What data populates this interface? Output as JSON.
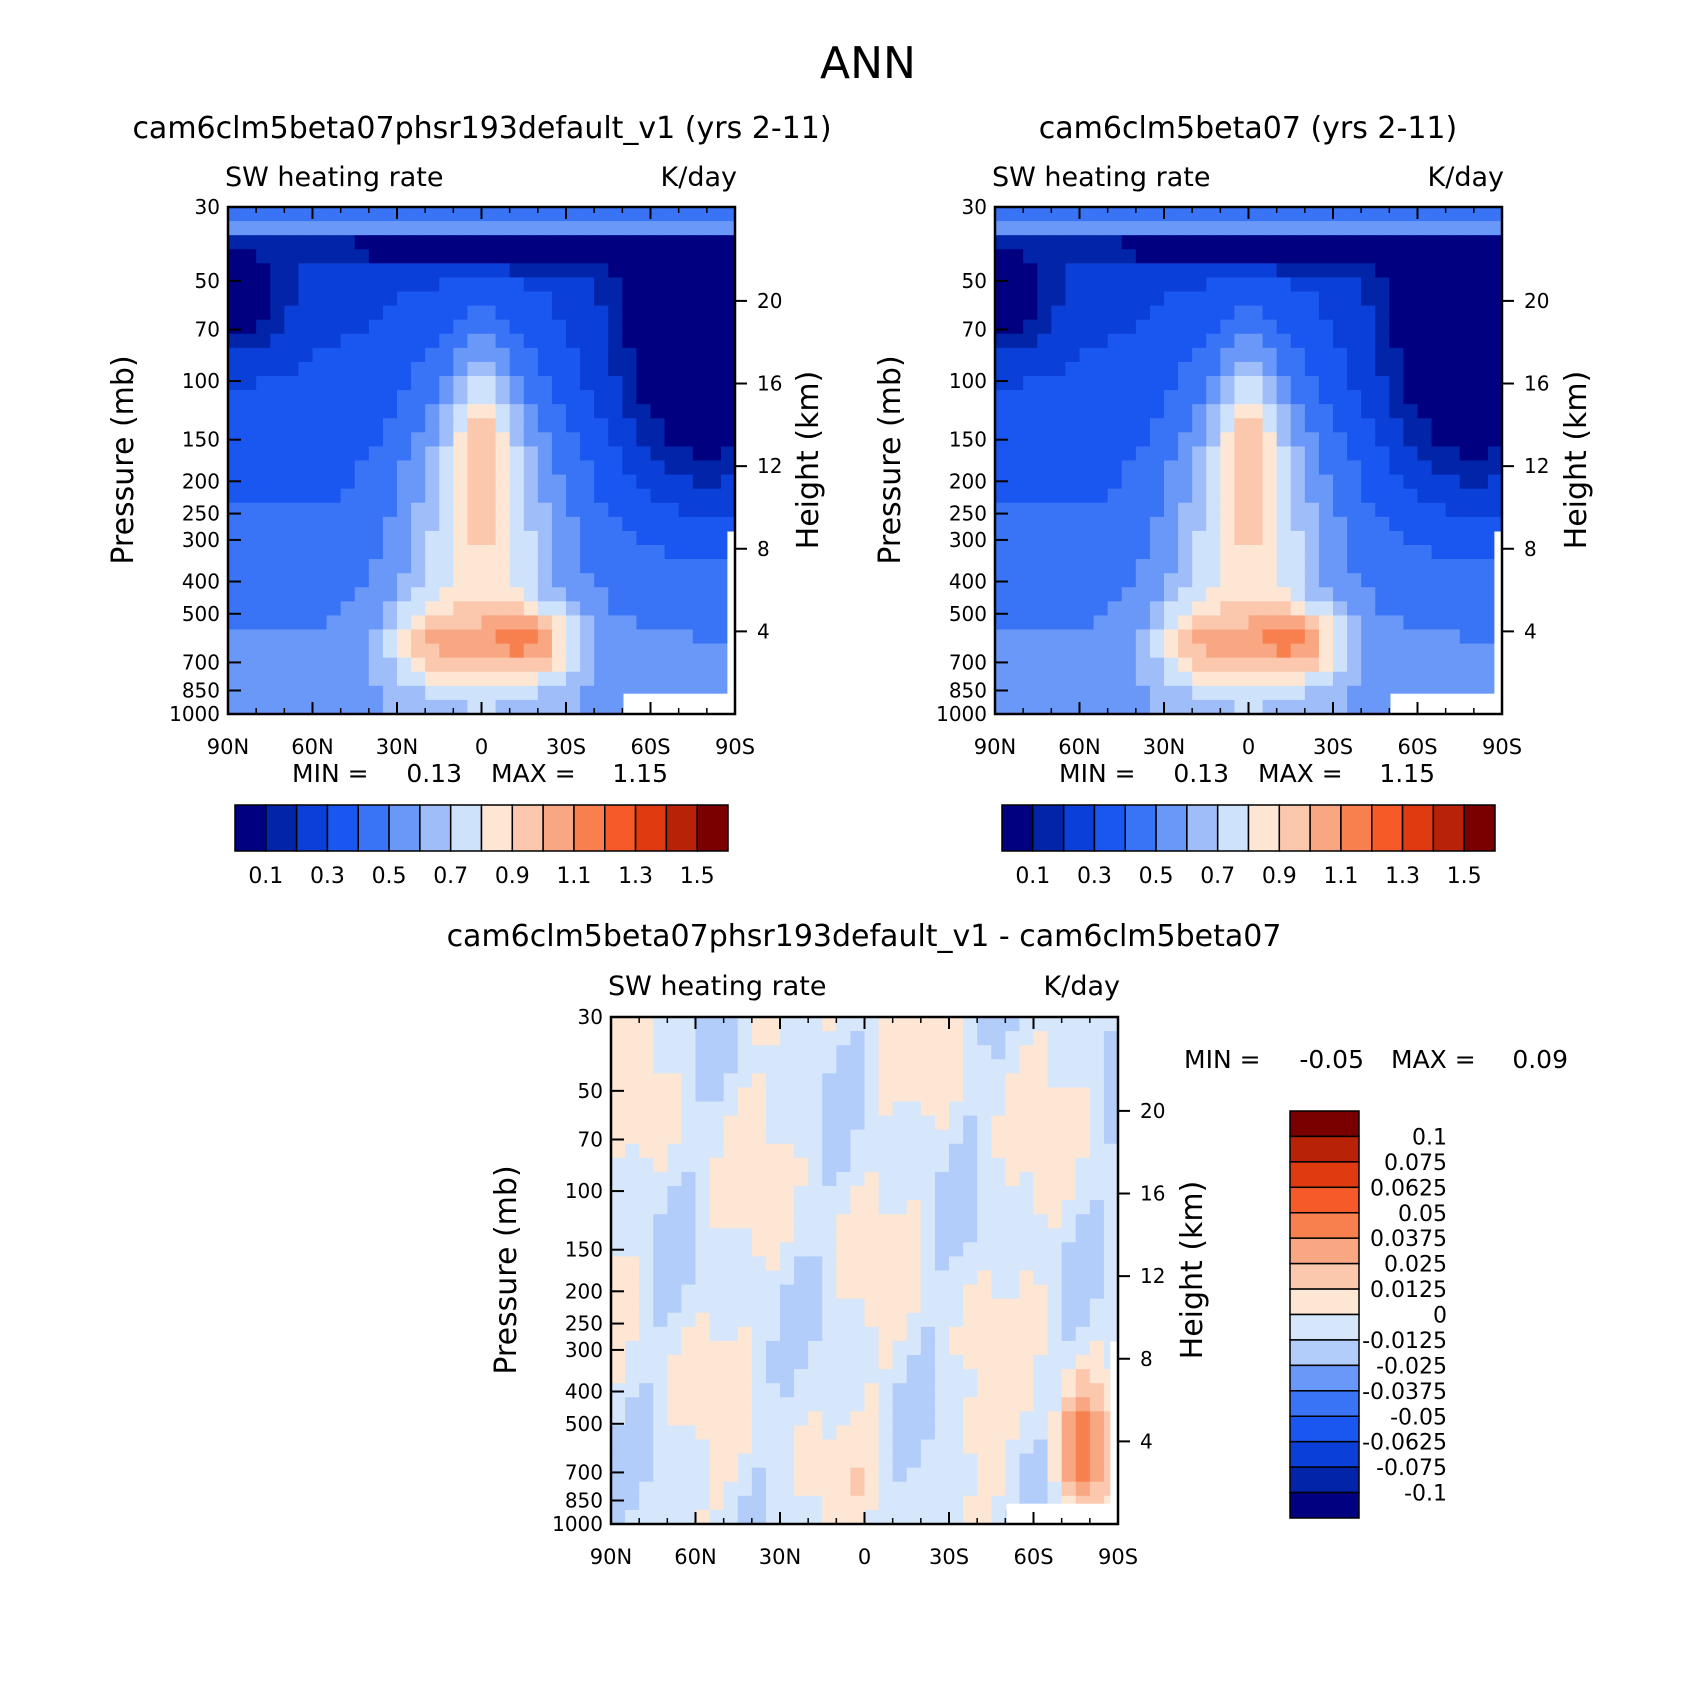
{
  "figure": {
    "title": "ANN"
  },
  "colors": {
    "abs_palette": [
      "#000080",
      "#0224a8",
      "#0a3fd8",
      "#1a56f0",
      "#3a74f6",
      "#6a98f8",
      "#9ebdf9",
      "#cfe2fb",
      "#fde6d4",
      "#fbc8ae",
      "#f9a682",
      "#f8804e",
      "#f55a28",
      "#e03a10",
      "#b82206",
      "#7a0000"
    ],
    "diff_palette": [
      "#000080",
      "#0224a8",
      "#0a3fd8",
      "#1a56f0",
      "#3a74f6",
      "#6a98f8",
      "#b2cdfa",
      "#d6e7fb",
      "#fde6d4",
      "#fbc8ae",
      "#f9a682",
      "#f8804e",
      "#f55a28",
      "#e03a10",
      "#b82206",
      "#7a0000"
    ]
  },
  "chart_data": [
    {
      "type": "heatmap",
      "id": "test",
      "title": "cam6clm5beta07phsr193default_v1 (yrs 2-11)",
      "left_label": "SW heating rate",
      "right_label": "K/day",
      "ylabel": "Pressure (mb)",
      "ylabel_right": "Height (km)",
      "x_ticks": [
        "90N",
        "60N",
        "30N",
        "0",
        "30S",
        "60S",
        "90S"
      ],
      "xlim": [
        90,
        -90
      ],
      "y_ticks": [
        "30",
        "50",
        "70",
        "100",
        "150",
        "200",
        "250",
        "300",
        "400",
        "500",
        "700",
        "850",
        "1000"
      ],
      "y_tick_values": [
        30,
        50,
        70,
        100,
        150,
        200,
        250,
        300,
        400,
        500,
        700,
        850,
        1000
      ],
      "ylim": [
        1000,
        30
      ],
      "height_ticks": [
        "20",
        "16",
        "12",
        "8",
        "4"
      ],
      "height_tick_values": [
        20,
        16,
        12,
        8,
        4
      ],
      "min_label": "MIN =",
      "min_value": "0.13",
      "max_label": "MAX =",
      "max_value": "1.15",
      "contour_levels": [
        0.1,
        0.2,
        0.3,
        0.4,
        0.5,
        0.6,
        0.7,
        0.8,
        0.9,
        1.0,
        1.1,
        1.2,
        1.3,
        1.4,
        1.5
      ],
      "colorbar_labels": [
        "0.1",
        "0.3",
        "0.5",
        "0.7",
        "0.9",
        "1.1",
        "1.3",
        "1.5"
      ],
      "min": 0.13,
      "max": 1.15
    },
    {
      "type": "heatmap",
      "id": "control",
      "title": "cam6clm5beta07 (yrs 2-11)",
      "left_label": "SW heating rate",
      "right_label": "K/day",
      "ylabel": "Pressure (mb)",
      "ylabel_right": "Height (km)",
      "x_ticks": [
        "90N",
        "60N",
        "30N",
        "0",
        "30S",
        "60S",
        "90S"
      ],
      "xlim": [
        90,
        -90
      ],
      "y_ticks": [
        "30",
        "50",
        "70",
        "100",
        "150",
        "200",
        "250",
        "300",
        "400",
        "500",
        "700",
        "850",
        "1000"
      ],
      "y_tick_values": [
        30,
        50,
        70,
        100,
        150,
        200,
        250,
        300,
        400,
        500,
        700,
        850,
        1000
      ],
      "ylim": [
        1000,
        30
      ],
      "height_ticks": [
        "20",
        "16",
        "12",
        "8",
        "4"
      ],
      "height_tick_values": [
        20,
        16,
        12,
        8,
        4
      ],
      "min_label": "MIN =",
      "min_value": "0.13",
      "max_label": "MAX =",
      "max_value": "1.15",
      "contour_levels": [
        0.1,
        0.2,
        0.3,
        0.4,
        0.5,
        0.6,
        0.7,
        0.8,
        0.9,
        1.0,
        1.1,
        1.2,
        1.3,
        1.4,
        1.5
      ],
      "colorbar_labels": [
        "0.1",
        "0.3",
        "0.5",
        "0.7",
        "0.9",
        "1.1",
        "1.3",
        "1.5"
      ],
      "min": 0.13,
      "max": 1.15
    },
    {
      "type": "heatmap",
      "id": "difference",
      "title": "cam6clm5beta07phsr193default_v1 - cam6clm5beta07",
      "left_label": "SW heating rate",
      "right_label": "K/day",
      "ylabel": "Pressure (mb)",
      "ylabel_right": "Height (km)",
      "x_ticks": [
        "90N",
        "60N",
        "30N",
        "0",
        "30S",
        "60S",
        "90S"
      ],
      "xlim": [
        90,
        -90
      ],
      "y_ticks": [
        "30",
        "50",
        "70",
        "100",
        "150",
        "200",
        "250",
        "300",
        "400",
        "500",
        "700",
        "850",
        "1000"
      ],
      "y_tick_values": [
        30,
        50,
        70,
        100,
        150,
        200,
        250,
        300,
        400,
        500,
        700,
        850,
        1000
      ],
      "ylim": [
        1000,
        30
      ],
      "height_ticks": [
        "20",
        "16",
        "12",
        "8",
        "4"
      ],
      "height_tick_values": [
        20,
        16,
        12,
        8,
        4
      ],
      "min_label": "MIN =",
      "min_value": "-0.05",
      "max_label": "MAX =",
      "max_value": "0.09",
      "contour_levels": [
        -0.1,
        -0.075,
        -0.0625,
        -0.05,
        -0.0375,
        -0.025,
        -0.0125,
        0,
        0.0125,
        0.025,
        0.0375,
        0.05,
        0.0625,
        0.075,
        0.1
      ],
      "colorbar_labels": [
        "0.1",
        "0.075",
        "0.0625",
        "0.05",
        "0.0375",
        "0.025",
        "0.0125",
        "0",
        "-0.0125",
        "-0.025",
        "-0.0375",
        "-0.05",
        "-0.0625",
        "-0.075",
        "-0.1"
      ],
      "min": -0.05,
      "max": 0.09
    }
  ]
}
